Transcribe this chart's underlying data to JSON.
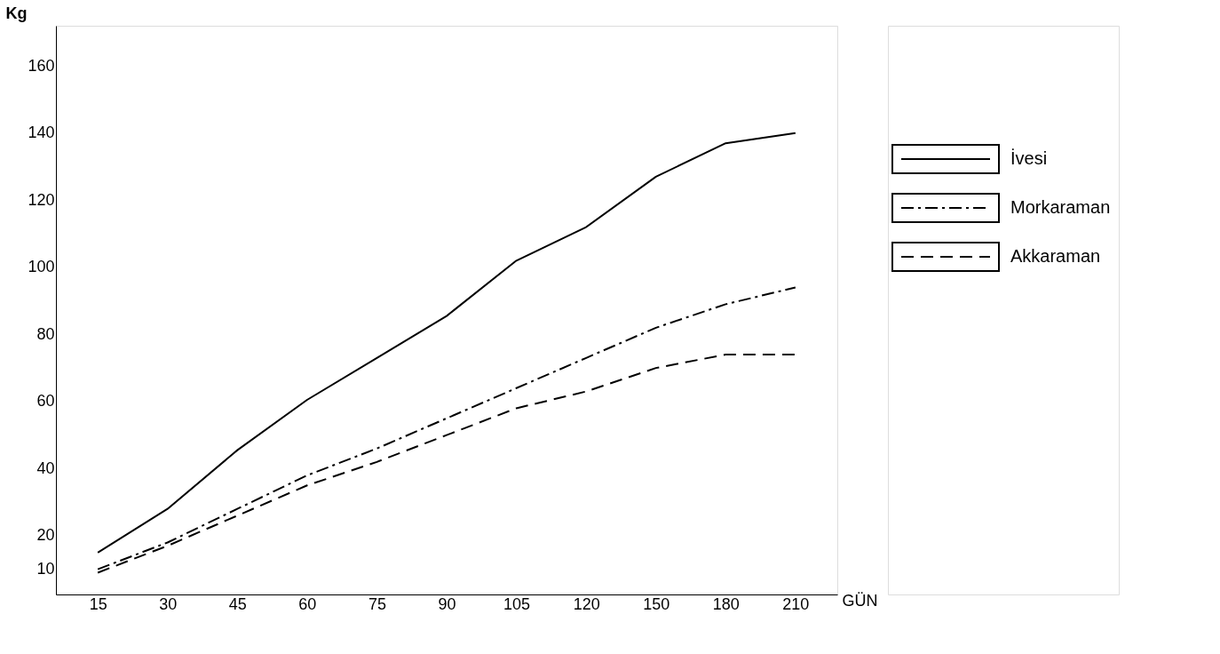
{
  "chart_data": {
    "type": "line",
    "xlabel": "GÜN",
    "ylabel": "Kg",
    "categories": [
      "15",
      "30",
      "45",
      "60",
      "75",
      "90",
      "105",
      "120",
      "150",
      "180",
      "210"
    ],
    "ylim": [
      2.5,
      172
    ],
    "yticks": [
      10,
      20,
      40,
      60,
      80,
      100,
      120,
      140,
      160
    ],
    "grid": false,
    "legend": "right",
    "marker": "none",
    "series": [
      {
        "name": "İvesi",
        "color": "#000000",
        "line_style": "solid",
        "values": [
          15,
          28,
          45.5,
          60.5,
          73,
          85.5,
          102,
          112,
          127,
          137,
          140
        ]
      },
      {
        "name": "Morkaraman",
        "color": "#000000",
        "line_style": "dashdot",
        "values": [
          10,
          18,
          28,
          38,
          46,
          55,
          64,
          73,
          82,
          89,
          94
        ]
      },
      {
        "name": "Akkaraman",
        "color": "#000000",
        "line_style": "dashed",
        "values": [
          9,
          17,
          26,
          35,
          42,
          50,
          58,
          63,
          70,
          74,
          74
        ]
      }
    ]
  }
}
